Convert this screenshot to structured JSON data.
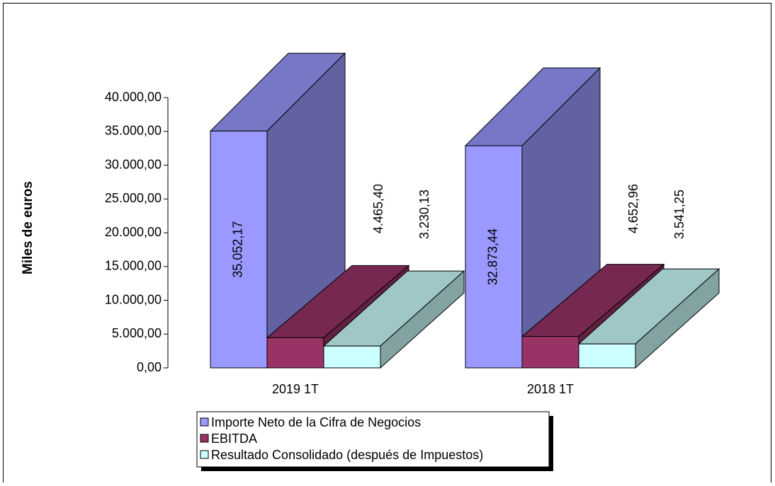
{
  "chart_data": {
    "type": "bar3d",
    "y_label": "Miles de euros",
    "categories": [
      "2019 1T",
      "2018 1T"
    ],
    "series": [
      {
        "name": "Importe Neto de la Cifra de Negocios",
        "color": "#9999ff",
        "values": [
          35052.17,
          32873.44
        ],
        "value_labels": [
          "35.052,17",
          "32.873,44"
        ]
      },
      {
        "name": "EBITDA",
        "color": "#993366",
        "values": [
          4465.4,
          4652.96
        ],
        "value_labels": [
          "4.465,40",
          "4.652,96"
        ]
      },
      {
        "name": "Resultado Consolidado (después de Impuestos)",
        "color": "#ccffff",
        "values": [
          3230.13,
          3541.25
        ],
        "value_labels": [
          "3.230,13",
          "3.541,25"
        ]
      }
    ],
    "ylim": [
      0,
      40000
    ],
    "yticks": [
      {
        "value": 0,
        "label": "0,00"
      },
      {
        "value": 5000,
        "label": "5.000,00"
      },
      {
        "value": 10000,
        "label": "10.000,00"
      },
      {
        "value": 15000,
        "label": "15.000,00"
      },
      {
        "value": 20000,
        "label": "20.000,00"
      },
      {
        "value": 25000,
        "label": "25.000,00"
      },
      {
        "value": 30000,
        "label": "30.000,00"
      },
      {
        "value": 35000,
        "label": "35.000,00"
      },
      {
        "value": 40000,
        "label": "40.000,00"
      }
    ]
  }
}
